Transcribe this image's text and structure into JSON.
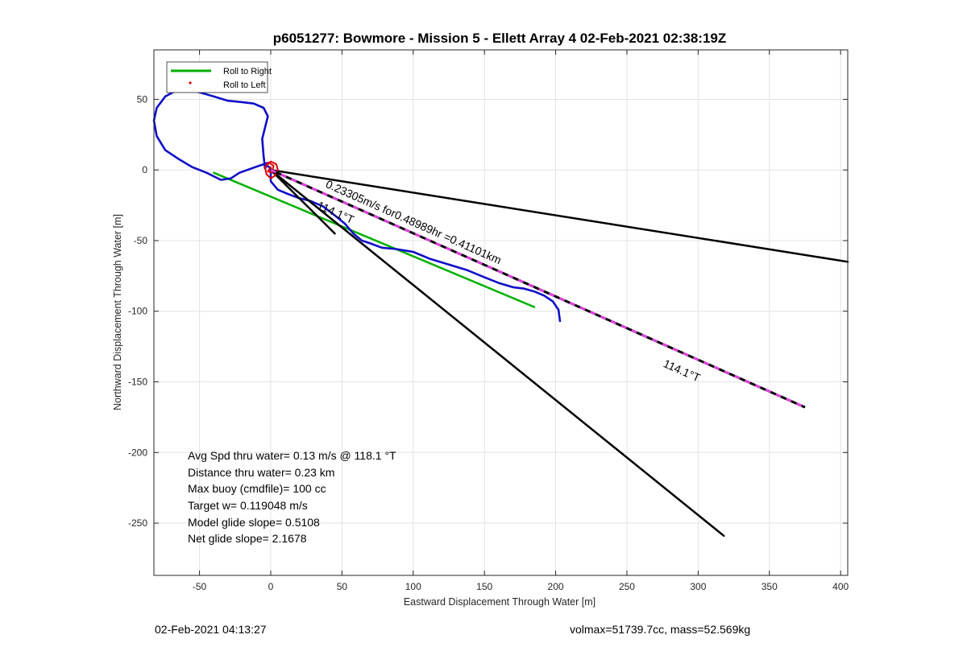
{
  "chart_data": {
    "type": "line",
    "title": "p6051277: Bowmore - Mission 5 - Ellett Array 4 02-Feb-2021 02:38:19Z",
    "xlabel": "Eastward Displacement Through Water [m]",
    "ylabel": "Northward Displacement Through Water [m]",
    "xlim": [
      -82,
      405
    ],
    "ylim": [
      -287,
      85
    ],
    "xticks": [
      -50,
      0,
      50,
      100,
      150,
      200,
      250,
      300,
      350,
      400
    ],
    "yticks": [
      50,
      0,
      -50,
      -100,
      -150,
      -200,
      -250
    ],
    "grid": true,
    "legend": {
      "placement": "top-left",
      "entries": [
        {
          "label": "Roll to Right",
          "color": "#00b000",
          "style": "line"
        },
        {
          "label": "Roll to Left",
          "color": "#e00000",
          "style": "marker"
        }
      ]
    },
    "series": [
      {
        "role": "track-blue",
        "color": "#1010c8",
        "points": [
          [
            -2,
            5
          ],
          [
            -8,
            3
          ],
          [
            -22,
            -2
          ],
          [
            -28,
            -6
          ],
          [
            -35,
            -7
          ],
          [
            -45,
            -2
          ],
          [
            -55,
            2
          ],
          [
            -65,
            8
          ],
          [
            -74,
            14
          ],
          [
            -80,
            24
          ],
          [
            -82,
            35
          ],
          [
            -80,
            44
          ],
          [
            -74,
            52
          ],
          [
            -65,
            57
          ],
          [
            -58,
            57
          ],
          [
            -50,
            55
          ],
          [
            -40,
            52
          ],
          [
            -30,
            49
          ],
          [
            -20,
            48
          ],
          [
            -12,
            47
          ],
          [
            -5,
            44
          ],
          [
            -2,
            38
          ],
          [
            -4,
            30
          ],
          [
            -6,
            22
          ],
          [
            -5,
            10
          ],
          [
            -4,
            1
          ],
          [
            -3,
            3
          ],
          [
            -1,
            2
          ],
          [
            0,
            1
          ],
          [
            0,
            -8
          ],
          [
            5,
            -14
          ],
          [
            12,
            -17
          ],
          [
            20,
            -20
          ],
          [
            28,
            -22
          ],
          [
            37,
            -26
          ],
          [
            46,
            -33
          ],
          [
            52,
            -38
          ],
          [
            58,
            -45
          ],
          [
            64,
            -50
          ],
          [
            70,
            -52
          ],
          [
            78,
            -55
          ],
          [
            88,
            -56
          ],
          [
            100,
            -58
          ],
          [
            112,
            -63
          ],
          [
            125,
            -67
          ],
          [
            138,
            -71
          ],
          [
            150,
            -76
          ],
          [
            160,
            -80
          ],
          [
            170,
            -83
          ],
          [
            178,
            -84
          ],
          [
            185,
            -86
          ],
          [
            192,
            -89
          ],
          [
            198,
            -93
          ],
          [
            202,
            -99
          ],
          [
            203,
            -107
          ]
        ]
      },
      {
        "role": "roll-right-green",
        "color": "#00b000",
        "points": [
          [
            -40,
            -2
          ],
          [
            185,
            -97
          ]
        ]
      },
      {
        "role": "roll-left-red",
        "color": "#e00000",
        "points": [
          [
            -3,
            4
          ],
          [
            0,
            6
          ],
          [
            4,
            4
          ],
          [
            5,
            0
          ],
          [
            3,
            -4
          ],
          [
            0,
            -6
          ],
          [
            -3,
            -3
          ],
          [
            -4,
            2
          ],
          [
            -1,
            5
          ],
          [
            2,
            3
          ],
          [
            1,
            -2
          ],
          [
            -2,
            -1
          ],
          [
            0,
            2
          ]
        ]
      },
      {
        "role": "black-line-upper",
        "color": "#000000",
        "points": [
          [
            0,
            0
          ],
          [
            405,
            -65
          ]
        ]
      },
      {
        "role": "black-line-lower",
        "color": "#000000",
        "points": [
          [
            0,
            0
          ],
          [
            318,
            -259
          ]
        ]
      },
      {
        "role": "current-line-dashed",
        "color": "#e040e0",
        "points": [
          [
            0,
            0
          ],
          [
            375,
            -168
          ]
        ]
      },
      {
        "role": "black-line-mid",
        "color": "#000000",
        "points": [
          [
            0,
            0
          ],
          [
            45,
            -45
          ]
        ]
      }
    ],
    "annotations": [
      {
        "text": "0.23305m/s for0.48989hr =0.41101km",
        "x": 38,
        "y": -12,
        "angle": 24
      },
      {
        "text": "114.1°T",
        "x": 32,
        "y": -27,
        "angle": 24
      },
      {
        "text": "114.1°T",
        "x": 275,
        "y": -139,
        "angle": 24
      }
    ],
    "stats": [
      "Avg Spd thru water=  0.13 m/s @ 118.1 °T",
      "Distance thru water=  0.23 km",
      "Max buoy (cmdfile)= 100 cc",
      "Target w= 0.119048 m/s",
      "Model glide slope= 0.5108",
      "Net glide slope= 2.1678"
    ]
  },
  "footer": {
    "left": "02-Feb-2021 04:13:27",
    "right": "volmax=51739.7cc, mass=52.569kg"
  }
}
